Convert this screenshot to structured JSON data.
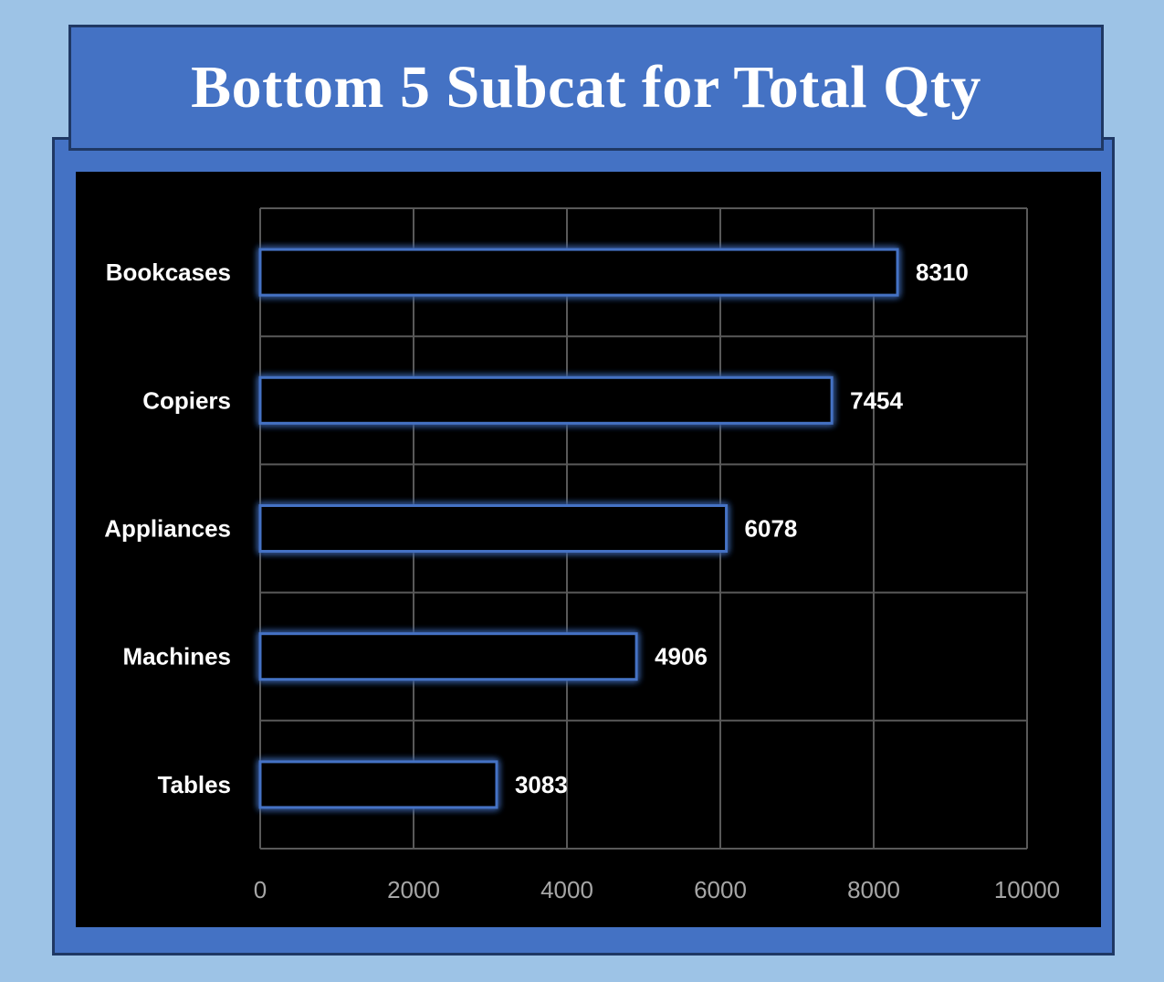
{
  "title": "Bottom 5 Subcat for Total Qty",
  "colors": {
    "page_background": "#9dc3e6",
    "frame_fill": "#4472c4",
    "frame_border": "#1f3864",
    "plot_background": "#000000",
    "bar_outline": "#4472c4",
    "gridline": "#595959",
    "text": "#ffffff",
    "tick_text": "#a6a6a6"
  },
  "chart_data": {
    "type": "bar",
    "orientation": "horizontal",
    "title": "Bottom 5 Subcat for Total Qty",
    "categories": [
      "Bookcases",
      "Copiers",
      "Appliances",
      "Machines",
      "Tables"
    ],
    "values": [
      8310,
      7454,
      6078,
      4906,
      3083
    ],
    "data_labels": [
      "8310",
      "7454",
      "6078",
      "4906",
      "3083"
    ],
    "xlim": [
      0,
      10000
    ],
    "x_ticks": [
      0,
      2000,
      4000,
      6000,
      8000,
      10000
    ],
    "x_tick_labels": [
      "0",
      "2000",
      "4000",
      "6000",
      "8000",
      "10000"
    ],
    "xlabel": "",
    "ylabel": "",
    "grid": true,
    "legend": "none",
    "bar_style": "outline with glow"
  }
}
